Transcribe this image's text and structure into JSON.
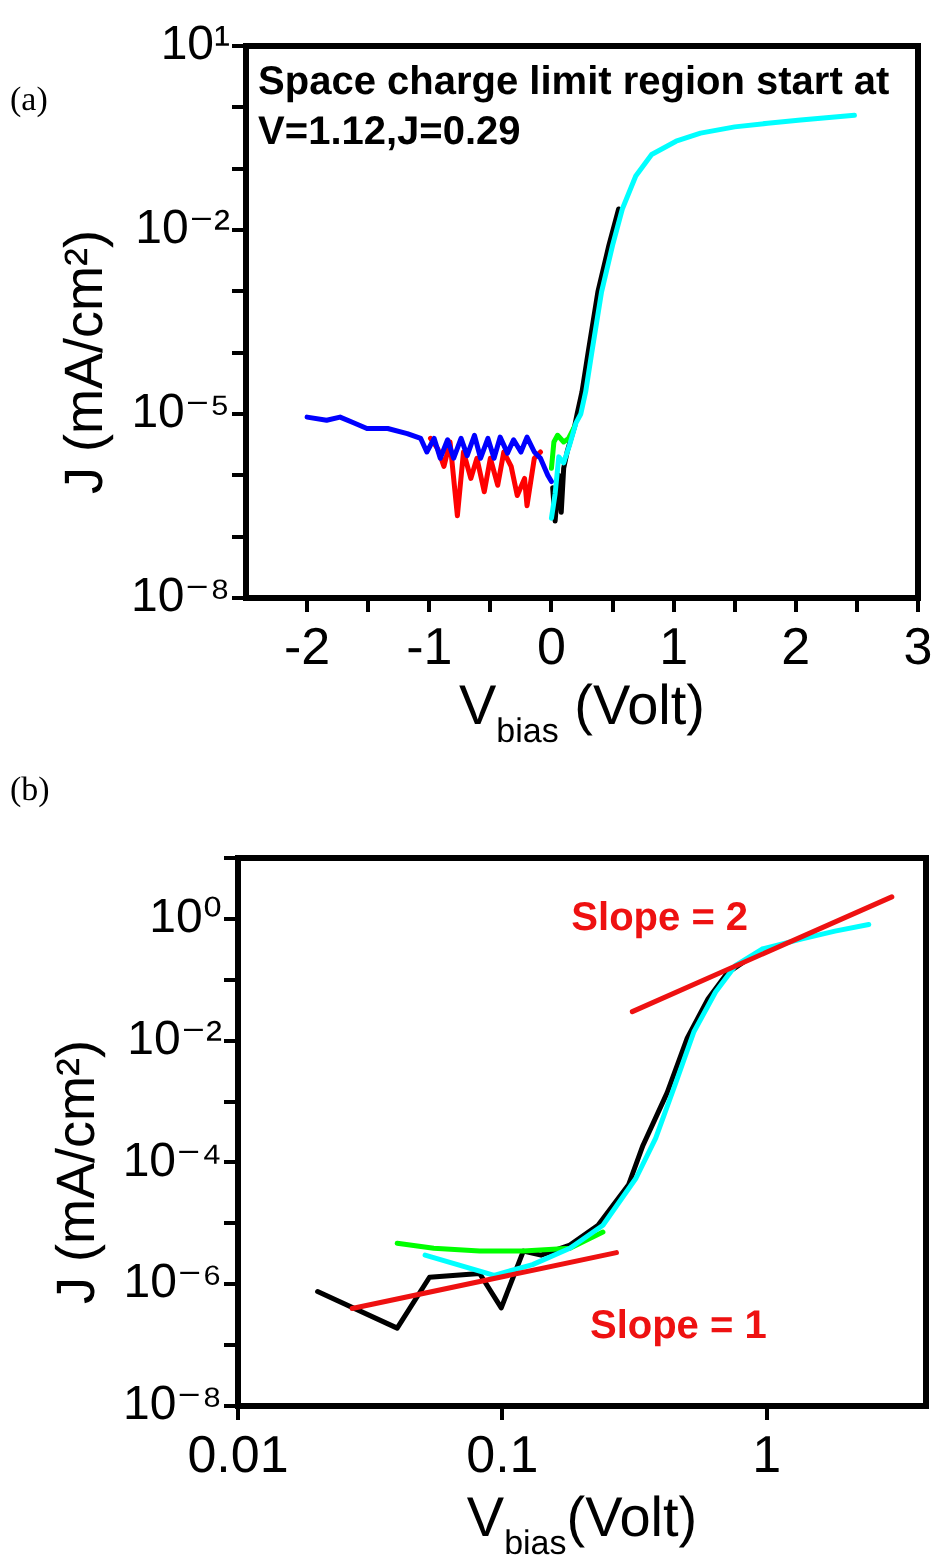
{
  "chart_data": [
    {
      "type": "line",
      "title": "(a)",
      "xlabel": "V$_{bias}$ (Volt)",
      "ylabel": "J (mA/cm²)",
      "annotations": [
        "Space charge limit region start at\nV=1.12,J=0.29"
      ],
      "series": [
        {
          "color": "#ff0000",
          "x": [
            -0.99,
            -0.93,
            -0.88,
            -0.83,
            -0.77,
            -0.72,
            -0.66,
            -0.61,
            -0.55,
            -0.5,
            -0.44,
            -0.39,
            -0.33,
            -0.28,
            -0.22,
            -0.2,
            -0.14,
            -0.09
          ],
          "values": [
            4e-06,
            2.7e-06,
            1.4e-06,
            3.5e-06,
            2.2e-07,
            2.4e-06,
            8.9e-07,
            1.9e-06,
            5.4e-07,
            1.9e-06,
            6.9e-07,
            2.4e-06,
            1.4e-06,
            4.7e-07,
            8.9e-07,
            3.2e-07,
            1.9e-06,
            2.4e-06
          ]
        },
        {
          "color": "#0000ff",
          "x": [
            -2,
            -1.84,
            -1.73,
            -1.62,
            -1.51,
            -1.34,
            -1.18,
            -1.07,
            -1.02,
            -0.96,
            -0.91,
            -0.85,
            -0.8,
            -0.74,
            -0.69,
            -0.63,
            -0.58,
            -0.52,
            -0.47,
            -0.42,
            -0.36,
            -0.31,
            -0.25,
            -0.2,
            -0.14,
            -0.09,
            -0.03,
            0
          ],
          "values": [
            8.9e-06,
            7.9e-06,
            8.9e-06,
            7.2e-06,
            5.8e-06,
            5.8e-06,
            4.8e-06,
            4e-06,
            2.4e-06,
            4e-06,
            1.9e-06,
            3.8e-06,
            1.9e-06,
            4e-06,
            2.1e-06,
            4.5e-06,
            1.9e-06,
            4e-06,
            1.9e-06,
            4.2e-06,
            2.3e-06,
            3.8e-06,
            2.4e-06,
            4.2e-06,
            2.4e-06,
            1.9e-06,
            1e-06,
            7.9e-07
          ]
        },
        {
          "color": "#000000",
          "x": [
            0.01,
            0.03,
            0.06,
            0.08,
            0.1,
            0.13,
            0.19,
            0.21,
            0.25,
            0.3,
            0.38,
            0.47,
            0.55
          ],
          "values": [
            6.3e-07,
            1.8e-07,
            1e-06,
            2.5e-07,
            1.3e-06,
            2.5e-06,
            6.3e-06,
            1e-05,
            2.3e-05,
            0.0001,
            0.00098,
            0.0056,
            0.022
          ]
        },
        {
          "color": "#00ff00",
          "x": [
            0,
            0.02,
            0.05,
            0.1,
            0.14,
            0.19
          ],
          "values": [
            1.3e-06,
            3.5e-06,
            4.5e-06,
            3.5e-06,
            4e-06,
            6.3e-06
          ]
        },
        {
          "color": "#00ffff",
          "x": [
            0,
            0.03,
            0.06,
            0.1,
            0.15,
            0.2,
            0.24,
            0.28,
            0.33,
            0.41,
            0.5,
            0.58,
            0.69,
            0.82,
            1.02,
            1.22,
            1.5,
            1.77,
            2.04,
            2.48
          ],
          "values": [
            2e-07,
            5e-07,
            2e-06,
            1.6e-06,
            3.2e-06,
            7.1e-06,
            1e-05,
            2.3e-05,
            0.0001,
            0.00098,
            0.0056,
            0.022,
            0.076,
            0.17,
            0.28,
            0.38,
            0.48,
            0.55,
            0.62,
            0.74
          ]
        }
      ],
      "xlim": [
        -2.5,
        3
      ],
      "xticks": [
        -2,
        {
          "value": -1.5,
          "label": null
        },
        -1,
        {
          "value": -0.5,
          "label": null
        },
        0,
        {
          "value": 0.5,
          "label": null
        },
        1,
        {
          "value": 1.5,
          "label": null
        },
        2,
        {
          "value": 2.5,
          "label": null
        },
        3
      ],
      "ylim": [
        1e-08,
        10
      ],
      "yticks": [
        {
          "value": 1e-08,
          "label": "10⁻⁸"
        },
        {
          "value": 1e-07,
          "label": null
        },
        {
          "value": 1e-06,
          "label": null
        },
        {
          "value": 1e-05,
          "label": "10⁻⁵"
        },
        {
          "value": 0.0001,
          "label": null
        },
        {
          "value": 0.001,
          "label": null
        },
        {
          "value": 0.01,
          "label": "10⁻²"
        },
        {
          "value": 0.1,
          "label": null
        },
        {
          "value": 1,
          "label": null
        },
        {
          "value": 10,
          "label": "10¹"
        }
      ],
      "log": "y",
      "grid": false,
      "legend": false,
      "marker": "none",
      "line_style": "solid"
    },
    {
      "type": "line",
      "title": "(b)",
      "xlabel": "V$_{bias}$(Volt)",
      "ylabel": "J (mA/cm²)",
      "annotations": [
        "Slope = 2",
        "Slope = 1"
      ],
      "series": [
        {
          "color": "#000000",
          "x": [
            0.02,
            0.04,
            0.053,
            0.082,
            0.099,
            0.12,
            0.14,
            0.18,
            0.23,
            0.3,
            0.34,
            0.42,
            0.5,
            0.6,
            0.71,
            0.85
          ],
          "values": [
            7.6e-07,
            1.9e-07,
            1.3e-06,
            1.5e-06,
            4.1e-07,
            3.5e-06,
            3e-06,
            4.4e-06,
            9.3e-06,
            4.3e-05,
            0.00019,
            0.0014,
            0.011,
            0.049,
            0.13,
            0.22
          ]
        },
        {
          "color": "#00ff00",
          "x": [
            0.04,
            0.055,
            0.082,
            0.12,
            0.18,
            0.24
          ],
          "values": [
            4.7e-06,
            3.9e-06,
            3.5e-06,
            3.5e-06,
            3.9e-06,
            7.2e-06
          ]
        },
        {
          "color": "#00ffff",
          "x": [
            0.051,
            0.093,
            0.13,
            0.18,
            0.24,
            0.32,
            0.38,
            0.45,
            0.53,
            0.64,
            0.76,
            0.96,
            1.36,
            1.81,
            2.43
          ],
          "values": [
            3e-06,
            1.4e-06,
            2.1e-06,
            3.9e-06,
            9.3e-06,
            5.5e-05,
            0.00025,
            0.0019,
            0.014,
            0.063,
            0.17,
            0.32,
            0.47,
            0.63,
            0.81
          ]
        },
        {
          "color": "#ee1111",
          "x": [
            0.027,
            0.27
          ],
          "values": [
            4e-07,
            3.3e-06
          ]
        },
        {
          "color": "#ee1111",
          "x": [
            0.31,
            2.97
          ],
          "values": [
            0.03,
            2.3
          ]
        }
      ],
      "xlim": [
        0.01,
        4
      ],
      "xticks": [
        0.01,
        0.1,
        1
      ],
      "ylim": [
        1e-08,
        10
      ],
      "yticks": [
        {
          "value": 1e-08,
          "label": "10⁻⁸"
        },
        {
          "value": 1e-07,
          "label": null
        },
        {
          "value": 1e-06,
          "label": "10⁻⁶"
        },
        {
          "value": 1e-05,
          "label": null
        },
        {
          "value": 0.0001,
          "label": "10⁻⁴"
        },
        {
          "value": 0.001,
          "label": null
        },
        {
          "value": 0.01,
          "label": "10⁻²"
        },
        {
          "value": 0.1,
          "label": null
        },
        {
          "value": 1,
          "label": "10⁰"
        },
        {
          "value": 10,
          "label": null
        }
      ],
      "log": "xy",
      "grid": false,
      "legend": false,
      "marker": "none",
      "line_style": "solid"
    }
  ]
}
